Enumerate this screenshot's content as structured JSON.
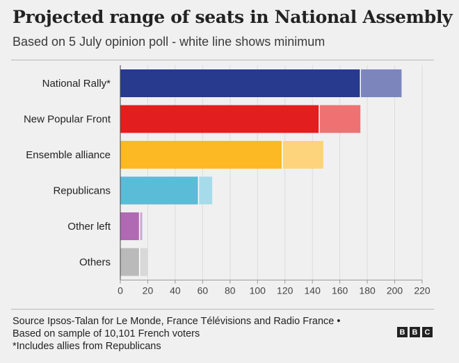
{
  "chart_data": {
    "type": "bar",
    "orientation": "horizontal",
    "title": "Projected range of seats in National Assembly",
    "subtitle": "Based on 5 July opinion poll - white line shows minimum",
    "categories": [
      "National Rally*",
      "New Popular Front",
      "Ensemble alliance",
      "Republicans",
      "Other left",
      "Others"
    ],
    "series": [
      {
        "name": "Minimum",
        "values": [
          175,
          145,
          118,
          57,
          14,
          14
        ]
      },
      {
        "name": "Maximum",
        "values": [
          205,
          175,
          148,
          67,
          16,
          20
        ]
      }
    ],
    "colors_min": [
      "#283a8e",
      "#e31e1e",
      "#fcb923",
      "#5bbcd8",
      "#b06ab3",
      "#bababa"
    ],
    "colors_max": [
      "#7c86bc",
      "#ef7171",
      "#fdd47c",
      "#a6dbea",
      "#d3a6d5",
      "#d8d8d8"
    ],
    "xlim": [
      0,
      220
    ],
    "xticks": [
      0,
      20,
      40,
      60,
      80,
      100,
      120,
      140,
      160,
      180,
      200,
      220
    ],
    "xlabel": "",
    "ylabel": "",
    "grid": true
  },
  "footer": {
    "source_line1": "Source Ipsos-Talan for Le Monde, France Télévisions and Radio France •",
    "source_line2": "Based on sample of 10,101 French voters",
    "note": "*Includes allies from Republicans"
  },
  "logo": {
    "letters": [
      "B",
      "B",
      "C"
    ]
  }
}
